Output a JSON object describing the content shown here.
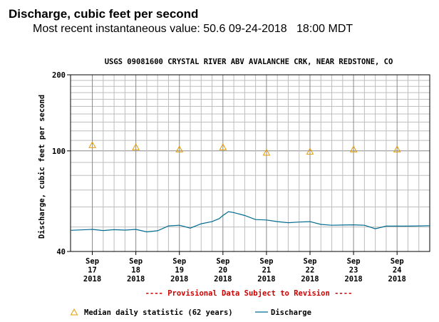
{
  "header": {
    "title": "Discharge, cubic feet per second",
    "subtitle": "Most recent instantaneous value: 50.6 09-24-2018   18:00 MDT"
  },
  "chart_data": {
    "type": "line",
    "title": "USGS 09081600 CRYSTAL RIVER ABV AVALANCHE CRK, NEAR REDSTONE, CO",
    "ylabel": "Discharge, cubic feet per second",
    "xlabel": "",
    "yscale": "log",
    "ylim": [
      40,
      200
    ],
    "yticks": [
      40,
      100,
      200
    ],
    "xlim": [
      "2018-09-16T12:00",
      "2018-09-24T18:00"
    ],
    "xticks": [
      {
        "date": "2018-09-17",
        "label": [
          "Sep",
          "17",
          "2018"
        ]
      },
      {
        "date": "2018-09-18",
        "label": [
          "Sep",
          "18",
          "2018"
        ]
      },
      {
        "date": "2018-09-19",
        "label": [
          "Sep",
          "19",
          "2018"
        ]
      },
      {
        "date": "2018-09-20",
        "label": [
          "Sep",
          "20",
          "2018"
        ]
      },
      {
        "date": "2018-09-21",
        "label": [
          "Sep",
          "21",
          "2018"
        ]
      },
      {
        "date": "2018-09-22",
        "label": [
          "Sep",
          "22",
          "2018"
        ]
      },
      {
        "date": "2018-09-23",
        "label": [
          "Sep",
          "23",
          "2018"
        ]
      },
      {
        "date": "2018-09-24",
        "label": [
          "Sep",
          "24",
          "2018"
        ]
      }
    ],
    "grid": true,
    "provisional_note": "---- Provisional Data Subject to Revision ----",
    "legend": {
      "placement": "bottom",
      "items": [
        {
          "label": "Median daily statistic (62 years)",
          "marker": "triangle",
          "color": "#e39b00"
        },
        {
          "label": "Discharge",
          "marker": "line",
          "color": "#006b8f"
        }
      ]
    },
    "series": [
      {
        "name": "Median daily statistic (62 years)",
        "kind": "markers",
        "color": "#e39b00",
        "x": [
          "2018-09-17",
          "2018-09-18",
          "2018-09-19",
          "2018-09-20",
          "2018-09-21",
          "2018-09-22",
          "2018-09-23",
          "2018-09-24"
        ],
        "y": [
          105,
          103,
          101,
          103,
          98,
          99,
          101,
          101
        ]
      },
      {
        "name": "Discharge",
        "kind": "line",
        "color": "#006b8f",
        "x": [
          "2018-09-16T12:00",
          "2018-09-16T18:00",
          "2018-09-17T00:00",
          "2018-09-17T06:00",
          "2018-09-17T12:00",
          "2018-09-17T18:00",
          "2018-09-18T00:00",
          "2018-09-18T06:00",
          "2018-09-18T12:00",
          "2018-09-18T18:00",
          "2018-09-19T00:00",
          "2018-09-19T06:00",
          "2018-09-19T12:00",
          "2018-09-19T18:00",
          "2018-09-19T22:00",
          "2018-09-20T00:00",
          "2018-09-20T03:00",
          "2018-09-20T06:00",
          "2018-09-20T12:00",
          "2018-09-20T18:00",
          "2018-09-21T00:00",
          "2018-09-21T06:00",
          "2018-09-21T12:00",
          "2018-09-21T18:00",
          "2018-09-22T00:00",
          "2018-09-22T06:00",
          "2018-09-22T12:00",
          "2018-09-22T18:00",
          "2018-09-23T00:00",
          "2018-09-23T06:00",
          "2018-09-23T12:00",
          "2018-09-23T18:00",
          "2018-09-24T00:00",
          "2018-09-24T06:00",
          "2018-09-24T12:00",
          "2018-09-24T18:00"
        ],
        "y": [
          48.5,
          48.7,
          48.9,
          48.4,
          48.8,
          48.6,
          48.9,
          47.8,
          48.3,
          50.5,
          50.8,
          49.5,
          51.5,
          52.5,
          54.0,
          55.5,
          57.5,
          57.0,
          55.5,
          53.5,
          53.3,
          52.5,
          52.0,
          52.3,
          52.5,
          51.2,
          50.8,
          50.9,
          51.0,
          50.8,
          49.2,
          50.4,
          50.4,
          50.4,
          50.5,
          50.6
        ]
      }
    ]
  }
}
